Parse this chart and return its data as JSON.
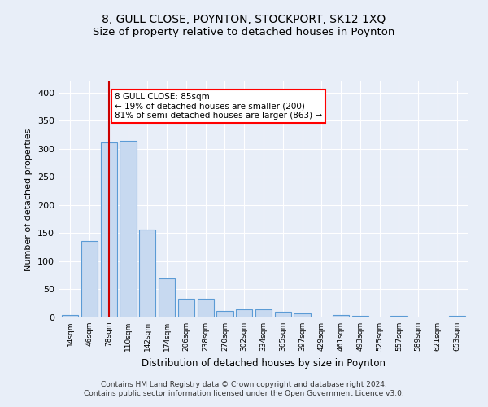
{
  "title": "8, GULL CLOSE, POYNTON, STOCKPORT, SK12 1XQ",
  "subtitle": "Size of property relative to detached houses in Poynton",
  "xlabel": "Distribution of detached houses by size in Poynton",
  "ylabel": "Number of detached properties",
  "footer_line1": "Contains HM Land Registry data © Crown copyright and database right 2024.",
  "footer_line2": "Contains public sector information licensed under the Open Government Licence v3.0.",
  "bin_labels": [
    "14sqm",
    "46sqm",
    "78sqm",
    "110sqm",
    "142sqm",
    "174sqm",
    "206sqm",
    "238sqm",
    "270sqm",
    "302sqm",
    "334sqm",
    "365sqm",
    "397sqm",
    "429sqm",
    "461sqm",
    "493sqm",
    "525sqm",
    "557sqm",
    "589sqm",
    "621sqm",
    "653sqm"
  ],
  "bar_values": [
    4,
    136,
    312,
    315,
    157,
    70,
    33,
    33,
    12,
    15,
    15,
    10,
    7,
    0,
    4,
    3,
    0,
    3,
    0,
    0,
    3
  ],
  "bar_color": "#c7d9f0",
  "bar_edge_color": "#5b9bd5",
  "red_line_x": 2,
  "annotation_text": "8 GULL CLOSE: 85sqm\n← 19% of detached houses are smaller (200)\n81% of semi-detached houses are larger (863) →",
  "annotation_box_color": "white",
  "annotation_box_edge_color": "red",
  "red_line_color": "#cc0000",
  "ylim": [
    0,
    420
  ],
  "yticks": [
    0,
    50,
    100,
    150,
    200,
    250,
    300,
    350,
    400
  ],
  "background_color": "#e8eef8",
  "grid_color": "white",
  "title_fontsize": 10,
  "subtitle_fontsize": 9.5,
  "footer_fontsize": 6.5,
  "xlabel_fontsize": 8.5,
  "ylabel_fontsize": 8.0,
  "ytick_fontsize": 8.0,
  "xtick_fontsize": 6.5
}
